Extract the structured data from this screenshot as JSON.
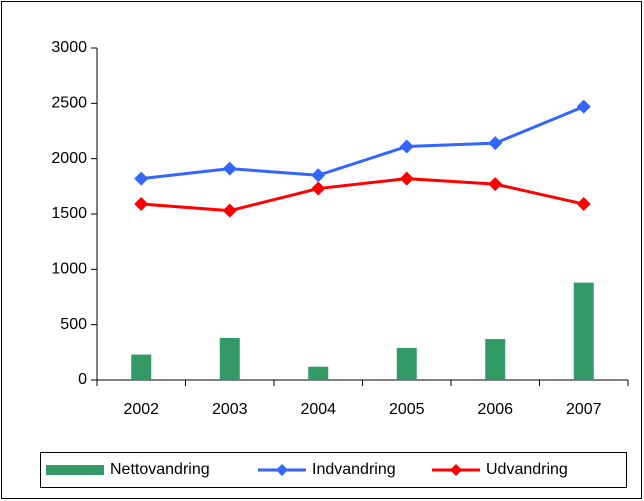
{
  "chart_data": {
    "type": "bar",
    "categories": [
      "2002",
      "2003",
      "2004",
      "2005",
      "2006",
      "2007"
    ],
    "series": [
      {
        "name": "Nettovandring",
        "type": "bar",
        "color": "#339966",
        "values": [
          230,
          380,
          120,
          290,
          370,
          880
        ]
      },
      {
        "name": "Indvandring",
        "type": "line",
        "color": "#3366ff",
        "values": [
          1820,
          1910,
          1850,
          2110,
          2140,
          2470
        ]
      },
      {
        "name": "Udvandring",
        "type": "line",
        "color": "#ff0000",
        "values": [
          1590,
          1530,
          1730,
          1820,
          1770,
          1590
        ]
      }
    ],
    "ylim": [
      0,
      3000
    ],
    "yticks": [
      0,
      500,
      1000,
      1500,
      2000,
      2500,
      3000
    ],
    "grid": false,
    "legend": "bottom"
  }
}
